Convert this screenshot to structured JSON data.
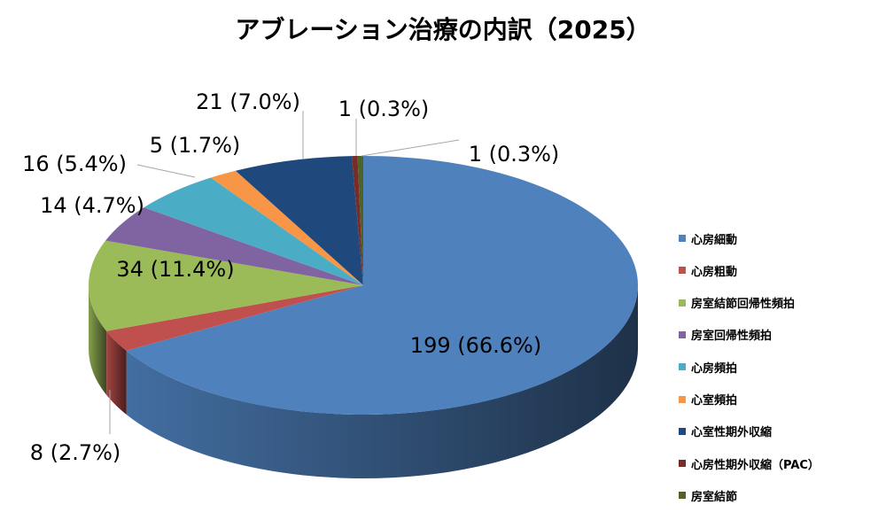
{
  "title": "アブレーション治療の内訳（2025）",
  "chart_data": {
    "type": "pie",
    "title": "アブレーション治療の内訳（2025）",
    "legend_position": "right",
    "slices": [
      {
        "name": "心房細動",
        "value": 199,
        "percent": 66.6,
        "label": "199 (66.6%)",
        "color": "#4F81BD"
      },
      {
        "name": "心房粗動",
        "value": 8,
        "percent": 2.7,
        "label": "8 (2.7%)",
        "color": "#C0504D"
      },
      {
        "name": "房室結節回帰性頻拍",
        "value": 34,
        "percent": 11.4,
        "label": "34 (11.4%)",
        "color": "#9BBB59"
      },
      {
        "name": "房室回帰性頻拍",
        "value": 14,
        "percent": 4.7,
        "label": "14 (4.7%)",
        "color": "#8064A2"
      },
      {
        "name": "心房頻拍",
        "value": 16,
        "percent": 5.4,
        "label": "16 (5.4%)",
        "color": "#4BACC6"
      },
      {
        "name": "心室頻拍",
        "value": 5,
        "percent": 1.7,
        "label": "5 (1.7%)",
        "color": "#F79646"
      },
      {
        "name": "心室性期外収縮",
        "value": 21,
        "percent": 7.0,
        "label": "21 (7.0%)",
        "color": "#1F497D"
      },
      {
        "name": "心房性期外収縮（PAC）",
        "value": 1,
        "percent": 0.3,
        "label": "1 (0.3%)",
        "color": "#772C2A"
      },
      {
        "name": "房室結節",
        "value": 1,
        "percent": 0.3,
        "label": "1 (0.3%)",
        "color": "#4F6228"
      }
    ]
  }
}
